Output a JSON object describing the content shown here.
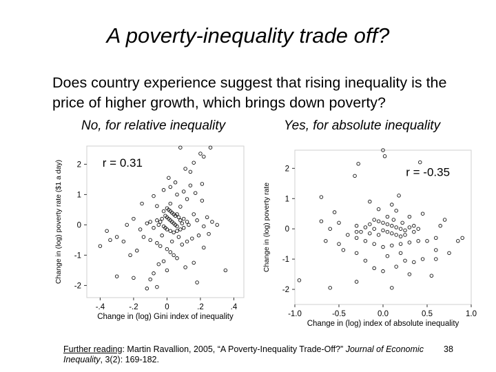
{
  "slide": {
    "title": "A poverty-inequality trade off?",
    "question": "Does country experience suggest that rising inequality is the price of higher growth, which brings down poverty?",
    "subtitle_left": "No, for relative inequality",
    "subtitle_right": "Yes, for absolute inequality",
    "footer": {
      "label": "Further reading",
      "text_before": ": Martin Ravallion, 2005, “A Poverty-Inequality Trade-Off?” ",
      "journal": "Journal of Economic Inequality",
      "citation": ", 3(2): 169-182."
    },
    "page_number": "38"
  },
  "chart_data": [
    {
      "type": "scatter",
      "annotation": "r = 0.31",
      "xlabel": "Change in (log) Gini index of inequality",
      "ylabel": "Change in (log) poverty rate ($1 a day)",
      "xlim": [
        -0.48,
        0.46
      ],
      "ylim": [
        -2.4,
        2.6
      ],
      "xticks": [
        -0.4,
        -0.2,
        0.0,
        0.2,
        0.4
      ],
      "xtick_labels": [
        "-.4",
        "-.2",
        "0",
        ".2",
        ".4"
      ],
      "yticks": [
        -2,
        -1,
        0,
        1,
        2
      ],
      "ytick_labels": [
        "-2",
        "-1",
        "0",
        "1",
        "2"
      ],
      "grid": false,
      "points": [
        [
          0.08,
          2.55
        ],
        [
          0.26,
          2.55
        ],
        [
          0.2,
          2.35
        ],
        [
          0.22,
          2.25
        ],
        [
          0.16,
          2.05
        ],
        [
          0.11,
          1.85
        ],
        [
          0.14,
          1.75
        ],
        [
          0.01,
          1.55
        ],
        [
          0.21,
          1.35
        ],
        [
          0.14,
          1.3
        ],
        [
          0.05,
          1.4
        ],
        [
          0.02,
          1.25
        ],
        [
          -0.02,
          1.15
        ],
        [
          0.1,
          1.1
        ],
        [
          0.17,
          1.05
        ],
        [
          -0.08,
          0.95
        ],
        [
          0.06,
          1.0
        ],
        [
          -0.15,
          0.7
        ],
        [
          0.02,
          0.7
        ],
        [
          0.12,
          0.85
        ],
        [
          0.21,
          0.8
        ],
        [
          -0.06,
          0.62
        ],
        [
          0.08,
          0.6
        ],
        [
          0.0,
          0.55
        ],
        [
          0.01,
          0.5
        ],
        [
          0.02,
          0.45
        ],
        [
          -0.02,
          0.45
        ],
        [
          0.03,
          0.4
        ],
        [
          0.04,
          0.35
        ],
        [
          0.05,
          0.3
        ],
        [
          -0.01,
          0.3
        ],
        [
          0.0,
          0.25
        ],
        [
          0.01,
          0.2
        ],
        [
          0.02,
          0.15
        ],
        [
          0.03,
          0.1
        ],
        [
          0.04,
          0.05
        ],
        [
          0.05,
          0.0
        ],
        [
          0.06,
          -0.05
        ],
        [
          -0.03,
          0.2
        ],
        [
          -0.04,
          0.1
        ],
        [
          -0.05,
          0.0
        ],
        [
          -0.06,
          0.15
        ],
        [
          0.07,
          0.25
        ],
        [
          0.08,
          0.15
        ],
        [
          0.09,
          0.05
        ],
        [
          0.06,
          0.35
        ],
        [
          0.1,
          0.2
        ],
        [
          0.12,
          0.1
        ],
        [
          -0.02,
          -0.05
        ],
        [
          -0.01,
          -0.1
        ],
        [
          0.0,
          -0.15
        ],
        [
          0.02,
          -0.2
        ],
        [
          0.04,
          -0.25
        ],
        [
          0.06,
          -0.2
        ],
        [
          0.08,
          -0.15
        ],
        [
          0.1,
          -0.1
        ],
        [
          0.13,
          0.0
        ],
        [
          -0.08,
          -0.1
        ],
        [
          -0.1,
          0.1
        ],
        [
          -0.12,
          0.05
        ],
        [
          0.24,
          0.25
        ],
        [
          0.27,
          0.1
        ],
        [
          0.3,
          0.0
        ],
        [
          0.22,
          -0.05
        ],
        [
          0.16,
          0.35
        ],
        [
          0.18,
          0.15
        ],
        [
          -0.2,
          0.2
        ],
        [
          -0.24,
          0.0
        ],
        [
          -0.3,
          -0.4
        ],
        [
          -0.34,
          -0.5
        ],
        [
          -0.36,
          -0.2
        ],
        [
          -0.14,
          -0.4
        ],
        [
          -0.1,
          -0.5
        ],
        [
          -0.06,
          -0.6
        ],
        [
          -0.04,
          -0.7
        ],
        [
          0.0,
          -0.8
        ],
        [
          0.02,
          -0.9
        ],
        [
          0.04,
          -1.0
        ],
        [
          0.06,
          -1.1
        ],
        [
          0.09,
          -0.65
        ],
        [
          0.12,
          -0.55
        ],
        [
          0.15,
          -0.45
        ],
        [
          0.19,
          -0.35
        ],
        [
          -0.02,
          -1.2
        ],
        [
          -0.05,
          -1.3
        ],
        [
          0.0,
          -1.5
        ],
        [
          -0.08,
          -1.6
        ],
        [
          0.16,
          -1.25
        ],
        [
          0.22,
          -0.75
        ],
        [
          0.07,
          -0.4
        ],
        [
          0.03,
          -0.55
        ],
        [
          -0.03,
          -0.35
        ],
        [
          -0.18,
          -0.85
        ],
        [
          -0.22,
          -1.0
        ],
        [
          0.35,
          -1.5
        ],
        [
          -0.3,
          -1.7
        ],
        [
          -0.2,
          -1.75
        ],
        [
          -0.1,
          -1.8
        ],
        [
          -0.06,
          -2.05
        ],
        [
          -0.12,
          -2.1
        ],
        [
          0.18,
          -1.9
        ],
        [
          -0.4,
          -0.7
        ],
        [
          0.11,
          -1.4
        ],
        [
          0.25,
          -0.3
        ],
        [
          -0.16,
          -0.15
        ],
        [
          -0.26,
          -0.55
        ]
      ]
    },
    {
      "type": "scatter",
      "annotation": "r = -0.35",
      "xlabel": "Change in (log) index of absolute inequality",
      "ylabel": "Change in (log) poverty rate",
      "xlim": [
        -1.0,
        1.0
      ],
      "ylim": [
        -2.5,
        2.6
      ],
      "xticks": [
        -1.0,
        -0.5,
        0.0,
        0.5,
        1.0
      ],
      "xtick_labels": [
        "-1.0",
        "-0.5",
        "0.0",
        "0.5",
        "1.0"
      ],
      "yticks": [
        -2,
        -1,
        0,
        1,
        2
      ],
      "ytick_labels": [
        "-2",
        "-1",
        "0",
        "1",
        "2"
      ],
      "grid": false,
      "points": [
        [
          0.0,
          2.6
        ],
        [
          0.02,
          2.4
        ],
        [
          -0.28,
          2.15
        ],
        [
          0.42,
          2.2
        ],
        [
          -0.32,
          1.75
        ],
        [
          -0.7,
          1.05
        ],
        [
          0.18,
          1.1
        ],
        [
          -0.55,
          0.55
        ],
        [
          -0.15,
          0.9
        ],
        [
          0.1,
          0.8
        ],
        [
          -0.05,
          0.65
        ],
        [
          0.15,
          0.6
        ],
        [
          0.3,
          0.4
        ],
        [
          0.45,
          0.5
        ],
        [
          0.7,
          0.3
        ],
        [
          -0.7,
          0.25
        ],
        [
          -0.5,
          0.2
        ],
        [
          -0.6,
          0.0
        ],
        [
          -0.1,
          0.3
        ],
        [
          -0.05,
          0.25
        ],
        [
          0.0,
          0.2
        ],
        [
          0.05,
          0.15
        ],
        [
          0.1,
          0.1
        ],
        [
          0.15,
          0.05
        ],
        [
          0.2,
          0.0
        ],
        [
          0.25,
          -0.05
        ],
        [
          -0.15,
          0.15
        ],
        [
          -0.2,
          0.05
        ],
        [
          -0.1,
          0.0
        ],
        [
          0.0,
          -0.05
        ],
        [
          0.05,
          -0.1
        ],
        [
          0.1,
          -0.15
        ],
        [
          0.15,
          -0.2
        ],
        [
          0.2,
          -0.25
        ],
        [
          0.25,
          -0.2
        ],
        [
          -0.05,
          -0.2
        ],
        [
          -0.15,
          -0.15
        ],
        [
          0.3,
          0.05
        ],
        [
          0.35,
          0.1
        ],
        [
          0.4,
          0.0
        ],
        [
          0.35,
          -0.1
        ],
        [
          -0.25,
          -0.1
        ],
        [
          -0.3,
          0.1
        ],
        [
          0.12,
          0.3
        ],
        [
          0.22,
          0.2
        ],
        [
          0.05,
          0.4
        ],
        [
          -0.4,
          -0.2
        ],
        [
          -0.3,
          -0.3
        ],
        [
          -0.2,
          -0.4
        ],
        [
          -0.1,
          -0.5
        ],
        [
          0.0,
          -0.6
        ],
        [
          0.1,
          -0.55
        ],
        [
          0.2,
          -0.5
        ],
        [
          0.3,
          -0.45
        ],
        [
          0.4,
          -0.4
        ],
        [
          0.5,
          -0.4
        ],
        [
          0.6,
          -0.3
        ],
        [
          -0.5,
          -0.5
        ],
        [
          -0.45,
          -0.7
        ],
        [
          -0.3,
          -0.8
        ],
        [
          0.05,
          -0.9
        ],
        [
          0.25,
          -1.05
        ],
        [
          0.35,
          -1.1
        ],
        [
          0.45,
          -1.0
        ],
        [
          -0.2,
          -1.05
        ],
        [
          0.15,
          -1.25
        ],
        [
          0.6,
          -0.7
        ],
        [
          0.75,
          -0.8
        ],
        [
          0.85,
          -0.4
        ],
        [
          -0.65,
          -0.4
        ],
        [
          0.0,
          -1.4
        ],
        [
          -0.1,
          -1.3
        ],
        [
          0.3,
          -1.5
        ],
        [
          0.55,
          -1.55
        ],
        [
          -0.3,
          -1.75
        ],
        [
          0.1,
          -1.95
        ],
        [
          -0.6,
          -1.95
        ],
        [
          -0.95,
          -1.7
        ],
        [
          -0.3,
          -0.1
        ],
        [
          0.2,
          -0.8
        ],
        [
          0.6,
          -1.0
        ],
        [
          0.9,
          -0.3
        ],
        [
          0.65,
          0.1
        ]
      ]
    }
  ]
}
